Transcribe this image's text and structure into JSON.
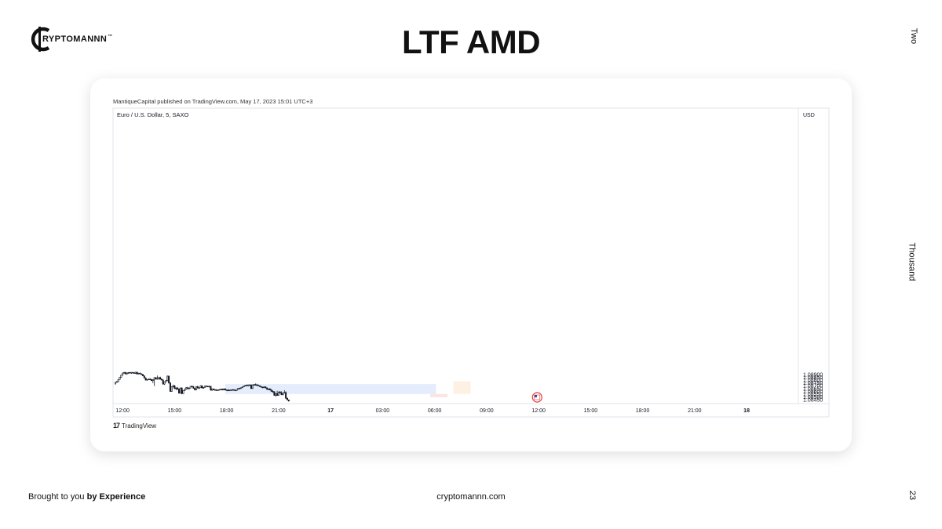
{
  "brand": {
    "name": "RYPTOMANNN",
    "tm": "™"
  },
  "slide": {
    "title": "LTF AMD",
    "page_number": "23"
  },
  "side_text": {
    "top": "Two",
    "middle": "Thousand"
  },
  "footer": {
    "left_prefix": "Brought to you ",
    "left_bold": "by Experience",
    "center": "cryptomannn.com"
  },
  "chart_header": {
    "published": "MantiqueCapital published on TradingView.com, May 17, 2023 15:01 UTC+3",
    "symbol": "Euro / U.S. Dollar, 5, SAXO"
  },
  "tradingview_label": "TradingView",
  "colors": {
    "up_body": "#ffffff",
    "down_body": "#131722",
    "wick": "#131722",
    "accumulation_box": "#e5edfc",
    "manipulation_box": "#fbe4e4",
    "distribution_box": "#fdf1e3"
  },
  "icons": {
    "event_marker": "us-flag-icon",
    "tv_logo": "tradingview-logo-icon"
  },
  "chart_data": {
    "type": "candlestick",
    "title": "",
    "currency_label": "USD",
    "y_ticks": [
      "1.08900",
      "1.08850",
      "1.08800",
      "1.08750",
      "1.08700",
      "1.08650",
      "1.08600",
      "1.08550",
      "1.08500",
      "1.08450"
    ],
    "ylim": [
      1.08425,
      1.08947
    ],
    "x_ticks": [
      {
        "label": "12:00",
        "bar": 5
      },
      {
        "label": "15:00",
        "bar": 41
      },
      {
        "label": "18:00",
        "bar": 77
      },
      {
        "label": "21:00",
        "bar": 113
      },
      {
        "label": "17",
        "bar": 149
      },
      {
        "label": "03:00",
        "bar": 185
      },
      {
        "label": "06:00",
        "bar": 221
      },
      {
        "label": "09:00",
        "bar": 257
      },
      {
        "label": "12:00",
        "bar": 293
      },
      {
        "label": "15:00",
        "bar": 329
      },
      {
        "label": "18:00",
        "bar": 365
      },
      {
        "label": "21:00",
        "bar": 401
      },
      {
        "label": "18",
        "bar": 437
      }
    ],
    "candles": [
      [
        1.0873,
        1.08767,
        1.08727,
        1.0876
      ],
      [
        1.08767,
        1.08787,
        1.08765,
        1.0877
      ],
      [
        1.0877,
        1.08815,
        1.08765,
        1.0881
      ],
      [
        1.0881,
        1.08855,
        1.08805,
        1.0885
      ],
      [
        1.0885,
        1.0889,
        1.08845,
        1.0889
      ],
      [
        1.0889,
        1.0893,
        1.0888,
        1.08925
      ],
      [
        1.08925,
        1.08945,
        1.08915,
        1.08935
      ],
      [
        1.08935,
        1.08945,
        1.08905,
        1.0891
      ],
      [
        1.0891,
        1.0893,
        1.08895,
        1.08925
      ],
      [
        1.08925,
        1.0894,
        1.0891,
        1.08935
      ],
      [
        1.08935,
        1.08945,
        1.0892,
        1.08925
      ],
      [
        1.08925,
        1.0894,
        1.0891,
        1.08935
      ],
      [
        1.08935,
        1.08945,
        1.08925,
        1.0893
      ],
      [
        1.0893,
        1.0894,
        1.08915,
        1.0892
      ],
      [
        1.0892,
        1.08945,
        1.0891,
        1.0894
      ],
      [
        1.0894,
        1.08945,
        1.089,
        1.0891
      ],
      [
        1.0891,
        1.0893,
        1.089,
        1.0892
      ],
      [
        1.0892,
        1.08935,
        1.08905,
        1.0891
      ],
      [
        1.0891,
        1.0892,
        1.0889,
        1.089
      ],
      [
        1.089,
        1.0891,
        1.0887,
        1.08875
      ],
      [
        1.08875,
        1.0888,
        1.0883,
        1.0884
      ],
      [
        1.0884,
        1.08845,
        1.08795,
        1.088
      ],
      [
        1.088,
        1.08815,
        1.0879,
        1.0881
      ],
      [
        1.0881,
        1.0883,
        1.088,
        1.08815
      ],
      [
        1.08815,
        1.08835,
        1.08805,
        1.0881
      ],
      [
        1.0881,
        1.0882,
        1.08785,
        1.0879
      ],
      [
        1.0879,
        1.08815,
        1.08745,
        1.08805
      ],
      [
        1.08805,
        1.0885,
        1.08695,
        1.08845
      ],
      [
        1.08845,
        1.0885,
        1.08815,
        1.0882
      ],
      [
        1.0882,
        1.0888,
        1.0881,
        1.08825
      ],
      [
        1.08825,
        1.0885,
        1.0881,
        1.08845
      ],
      [
        1.08845,
        1.0886,
        1.0881,
        1.08815
      ],
      [
        1.08815,
        1.08835,
        1.08795,
        1.088
      ],
      [
        1.088,
        1.08815,
        1.0872,
        1.0873
      ],
      [
        1.0873,
        1.08775,
        1.08715,
        1.0877
      ],
      [
        1.0877,
        1.088,
        1.0876,
        1.0879
      ],
      [
        1.0879,
        1.0888,
        1.0878,
        1.0887
      ],
      [
        1.0887,
        1.0888,
        1.0874,
        1.0875
      ],
      [
        1.0875,
        1.0876,
        1.0859,
        1.086
      ],
      [
        1.086,
        1.0869,
        1.08595,
        1.0868
      ],
      [
        1.0868,
        1.0872,
        1.0867,
        1.087
      ],
      [
        1.087,
        1.0871,
        1.0864,
        1.0865
      ],
      [
        1.0865,
        1.0867,
        1.0862,
        1.0866
      ],
      [
        1.0866,
        1.0868,
        1.0863,
        1.0864
      ],
      [
        1.0864,
        1.08655,
        1.0856,
        1.0857
      ],
      [
        1.0857,
        1.0867,
        1.08565,
        1.0866
      ],
      [
        1.0866,
        1.0867,
        1.0855,
        1.0856
      ],
      [
        1.0856,
        1.0862,
        1.08555,
        1.08615
      ],
      [
        1.08615,
        1.0865,
        1.08605,
        1.0864
      ],
      [
        1.0864,
        1.08675,
        1.0863,
        1.08665
      ],
      [
        1.08665,
        1.0868,
        1.0864,
        1.0865
      ],
      [
        1.0865,
        1.08665,
        1.0863,
        1.0866
      ],
      [
        1.0866,
        1.08695,
        1.0865,
        1.0869
      ],
      [
        1.0869,
        1.08705,
        1.08675,
        1.08685
      ],
      [
        1.08685,
        1.08695,
        1.0865,
        1.08655
      ],
      [
        1.08655,
        1.08665,
        1.0862,
        1.08625
      ],
      [
        1.08625,
        1.0869,
        1.0862,
        1.08685
      ],
      [
        1.08685,
        1.087,
        1.0865,
        1.0866
      ],
      [
        1.0866,
        1.0867,
        1.0864,
        1.08665
      ],
      [
        1.08665,
        1.0871,
        1.0866,
        1.087
      ],
      [
        1.087,
        1.08705,
        1.08655,
        1.0866
      ],
      [
        1.0866,
        1.08675,
        1.08645,
        1.0867
      ],
      [
        1.0867,
        1.087,
        1.08665,
        1.08695
      ],
      [
        1.08695,
        1.08705,
        1.0868,
        1.0869
      ],
      [
        1.0869,
        1.087,
        1.08675,
        1.08685
      ],
      [
        1.08685,
        1.087,
        1.0867,
        1.0869
      ],
      [
        1.0869,
        1.08695,
        1.0862,
        1.0862
      ],
      [
        1.0862,
        1.0865,
        1.0861,
        1.08645
      ],
      [
        1.08645,
        1.0865,
        1.0862,
        1.0863
      ],
      [
        1.0863,
        1.0864,
        1.08615,
        1.08625
      ],
      [
        1.08625,
        1.0864,
        1.0861,
        1.08615
      ],
      [
        1.08615,
        1.0863,
        1.08605,
        1.08625
      ],
      [
        1.08625,
        1.0864,
        1.08615,
        1.08635
      ],
      [
        1.08635,
        1.0865,
        1.08625,
        1.0864
      ],
      [
        1.0864,
        1.0865,
        1.0862,
        1.08625
      ],
      [
        1.08625,
        1.0865,
        1.0862,
        1.08645
      ],
      [
        1.08645,
        1.08655,
        1.0862,
        1.08625
      ],
      [
        1.08625,
        1.08635,
        1.08615,
        1.0862
      ],
      [
        1.0862,
        1.0864,
        1.0861,
        1.08615
      ],
      [
        1.08615,
        1.0863,
        1.08605,
        1.08625
      ],
      [
        1.08625,
        1.0863,
        1.0861,
        1.0862
      ],
      [
        1.0862,
        1.0864,
        1.0861,
        1.0863
      ],
      [
        1.0863,
        1.0864,
        1.08615,
        1.0862
      ],
      [
        1.0862,
        1.0863,
        1.0861,
        1.08615
      ],
      [
        1.08615,
        1.0864,
        1.0861,
        1.08635
      ],
      [
        1.08635,
        1.0866,
        1.0863,
        1.08655
      ],
      [
        1.08655,
        1.08665,
        1.0864,
        1.0865
      ],
      [
        1.0865,
        1.0867,
        1.08645,
        1.08665
      ],
      [
        1.08665,
        1.08685,
        1.0866,
        1.0868
      ],
      [
        1.0868,
        1.087,
        1.08675,
        1.08695
      ],
      [
        1.08695,
        1.08715,
        1.0869,
        1.0871
      ],
      [
        1.0871,
        1.0872,
        1.08695,
        1.087
      ],
      [
        1.087,
        1.0872,
        1.0869,
        1.08715
      ],
      [
        1.08715,
        1.0872,
        1.087,
        1.0871
      ],
      [
        1.0871,
        1.08725,
        1.08645,
        1.0865
      ],
      [
        1.0865,
        1.0872,
        1.08645,
        1.08715
      ],
      [
        1.08715,
        1.0873,
        1.08705,
        1.0872
      ],
      [
        1.0872,
        1.0874,
        1.0871,
        1.08715
      ],
      [
        1.08715,
        1.08735,
        1.087,
        1.0871
      ],
      [
        1.0871,
        1.0872,
        1.08695,
        1.087
      ],
      [
        1.087,
        1.08705,
        1.0868,
        1.08685
      ],
      [
        1.08685,
        1.08695,
        1.08665,
        1.08675
      ],
      [
        1.08675,
        1.08685,
        1.08655,
        1.08665
      ],
      [
        1.08665,
        1.0869,
        1.0866,
        1.0868
      ],
      [
        1.0868,
        1.08685,
        1.08655,
        1.0866
      ],
      [
        1.0866,
        1.0867,
        1.0863,
        1.08635
      ],
      [
        1.08635,
        1.0865,
        1.08625,
        1.08645
      ],
      [
        1.08645,
        1.08655,
        1.0862,
        1.08625
      ],
      [
        1.08625,
        1.0864,
        1.08595,
        1.086
      ],
      [
        1.086,
        1.0862,
        1.0858,
        1.08595
      ],
      [
        1.08595,
        1.086,
        1.08525,
        1.0853
      ],
      [
        1.0853,
        1.0857,
        1.08505,
        1.0856
      ],
      [
        1.0856,
        1.0861,
        1.0852,
        1.0853
      ],
      [
        1.0853,
        1.08595,
        1.08525,
        1.0859
      ],
      [
        1.0859,
        1.08605,
        1.08565,
        1.0857
      ],
      [
        1.0857,
        1.086,
        1.08535,
        1.0854
      ],
      [
        1.0854,
        1.0858,
        1.0853,
        1.08575
      ],
      [
        1.08575,
        1.0862,
        1.08565,
        1.0858
      ],
      [
        1.0858,
        1.086,
        1.08465,
        1.0848
      ],
      [
        1.0848,
        1.08485,
        1.08445,
        1.0845
      ],
      [
        1.0845,
        1.08455,
        1.0842,
        1.0843
      ]
    ],
    "zones": [
      {
        "name": "accumulation",
        "start_bar": 76,
        "end_bar": 222,
        "top": 1.08729,
        "bottom": 1.08554
      },
      {
        "name": "manipulation",
        "start_bar": 218,
        "end_bar": 230,
        "top": 1.08554,
        "bottom": 1.08497
      },
      {
        "name": "distribution",
        "start_bar": 234,
        "end_bar": 246,
        "top": 1.0878,
        "bottom": 1.08555
      }
    ],
    "events": [
      {
        "name": "us-event",
        "bar": 292
      }
    ]
  }
}
